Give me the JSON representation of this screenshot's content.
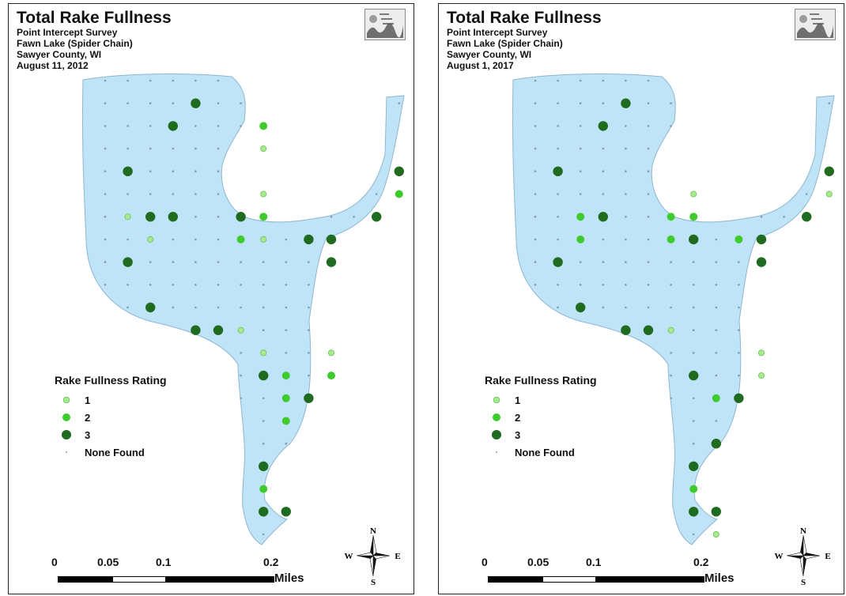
{
  "maps": [
    {
      "title": "Total Rake Fullness",
      "subtitle_lines": [
        "Point Intercept Survey",
        "Fawn Lake (Spider Chain)",
        "Sawyer County, WI",
        "August 11, 2012"
      ],
      "points": [
        {
          "row": 1,
          "col": 4,
          "r": 3
        },
        {
          "row": 2,
          "col": 3,
          "r": 3
        },
        {
          "row": 2,
          "col": 7,
          "r": 2
        },
        {
          "row": 3,
          "col": 7,
          "r": 1
        },
        {
          "row": 4,
          "col": 1,
          "r": 3
        },
        {
          "row": 4,
          "col": 13,
          "r": 3
        },
        {
          "row": 5,
          "col": 7,
          "r": 1
        },
        {
          "row": 5,
          "col": 13,
          "r": 2
        },
        {
          "row": 6,
          "col": 1,
          "r": 1
        },
        {
          "row": 6,
          "col": 2,
          "r": 3
        },
        {
          "row": 6,
          "col": 3,
          "r": 3
        },
        {
          "row": 6,
          "col": 6,
          "r": 3
        },
        {
          "row": 6,
          "col": 7,
          "r": 2
        },
        {
          "row": 6,
          "col": 12,
          "r": 3
        },
        {
          "row": 7,
          "col": 2,
          "r": 1
        },
        {
          "row": 7,
          "col": 6,
          "r": 2
        },
        {
          "row": 7,
          "col": 7,
          "r": 1
        },
        {
          "row": 7,
          "col": 9,
          "r": 3
        },
        {
          "row": 7,
          "col": 10,
          "r": 3
        },
        {
          "row": 8,
          "col": 1,
          "r": 3
        },
        {
          "row": 8,
          "col": 10,
          "r": 3
        },
        {
          "row": 10,
          "col": 2,
          "r": 3
        },
        {
          "row": 11,
          "col": 4,
          "r": 3
        },
        {
          "row": 11,
          "col": 5,
          "r": 3
        },
        {
          "row": 11,
          "col": 6,
          "r": 1
        },
        {
          "row": 12,
          "col": 7,
          "r": 1
        },
        {
          "row": 12,
          "col": 10,
          "r": 1
        },
        {
          "row": 13,
          "col": 7,
          "r": 3
        },
        {
          "row": 13,
          "col": 8,
          "r": 2
        },
        {
          "row": 13,
          "col": 10,
          "r": 2
        },
        {
          "row": 14,
          "col": 8,
          "r": 2
        },
        {
          "row": 14,
          "col": 9,
          "r": 3
        },
        {
          "row": 15,
          "col": 8,
          "r": 2
        },
        {
          "row": 17,
          "col": 7,
          "r": 3
        },
        {
          "row": 18,
          "col": 7,
          "r": 2
        },
        {
          "row": 19,
          "col": 7,
          "r": 3
        },
        {
          "row": 19,
          "col": 8,
          "r": 3
        }
      ]
    },
    {
      "title": "Total Rake Fullness",
      "subtitle_lines": [
        "Point Intercept Survey",
        "Fawn Lake (Spider Chain)",
        "Sawyer County, WI",
        "August 1, 2017"
      ],
      "points": [
        {
          "row": 1,
          "col": 4,
          "r": 3
        },
        {
          "row": 2,
          "col": 3,
          "r": 3
        },
        {
          "row": 4,
          "col": 1,
          "r": 3
        },
        {
          "row": 4,
          "col": 13,
          "r": 3
        },
        {
          "row": 5,
          "col": 7,
          "r": 1
        },
        {
          "row": 5,
          "col": 13,
          "r": 1
        },
        {
          "row": 6,
          "col": 2,
          "r": 2
        },
        {
          "row": 6,
          "col": 3,
          "r": 3
        },
        {
          "row": 6,
          "col": 6,
          "r": 2
        },
        {
          "row": 6,
          "col": 7,
          "r": 2
        },
        {
          "row": 6,
          "col": 12,
          "r": 3
        },
        {
          "row": 7,
          "col": 2,
          "r": 2
        },
        {
          "row": 7,
          "col": 6,
          "r": 2
        },
        {
          "row": 7,
          "col": 7,
          "r": 3
        },
        {
          "row": 7,
          "col": 9,
          "r": 2
        },
        {
          "row": 7,
          "col": 10,
          "r": 3
        },
        {
          "row": 8,
          "col": 1,
          "r": 3
        },
        {
          "row": 8,
          "col": 10,
          "r": 3
        },
        {
          "row": 10,
          "col": 2,
          "r": 3
        },
        {
          "row": 11,
          "col": 4,
          "r": 3
        },
        {
          "row": 11,
          "col": 5,
          "r": 3
        },
        {
          "row": 11,
          "col": 6,
          "r": 1
        },
        {
          "row": 12,
          "col": 10,
          "r": 1
        },
        {
          "row": 13,
          "col": 7,
          "r": 3
        },
        {
          "row": 13,
          "col": 10,
          "r": 1
        },
        {
          "row": 14,
          "col": 8,
          "r": 2
        },
        {
          "row": 14,
          "col": 9,
          "r": 3
        },
        {
          "row": 16,
          "col": 8,
          "r": 3
        },
        {
          "row": 17,
          "col": 7,
          "r": 3
        },
        {
          "row": 18,
          "col": 7,
          "r": 2
        },
        {
          "row": 19,
          "col": 7,
          "r": 3
        },
        {
          "row": 19,
          "col": 8,
          "r": 3
        },
        {
          "row": 20,
          "col": 8,
          "r": 1
        }
      ]
    }
  ],
  "legend": {
    "title": "Rake Fullness Rating",
    "items": [
      {
        "label": "1",
        "rating": 1
      },
      {
        "label": "2",
        "rating": 2
      },
      {
        "label": "3",
        "rating": 3
      },
      {
        "label": "None Found",
        "rating": 0
      }
    ]
  },
  "scalebar": {
    "ticks": [
      "0",
      "0.05",
      "0.1",
      "0.2"
    ],
    "units": "Miles"
  },
  "compass": {
    "n": "N",
    "s": "S",
    "e": "E",
    "w": "W"
  },
  "colors": {
    "lake_fill": "#bfe3f7",
    "lake_outline": "#8fb6d0",
    "rating_1": "#a6ec8c",
    "rating_2": "#3ecb2e",
    "rating_3": "#1f6b1f",
    "none_found": "#8a9aa6"
  }
}
